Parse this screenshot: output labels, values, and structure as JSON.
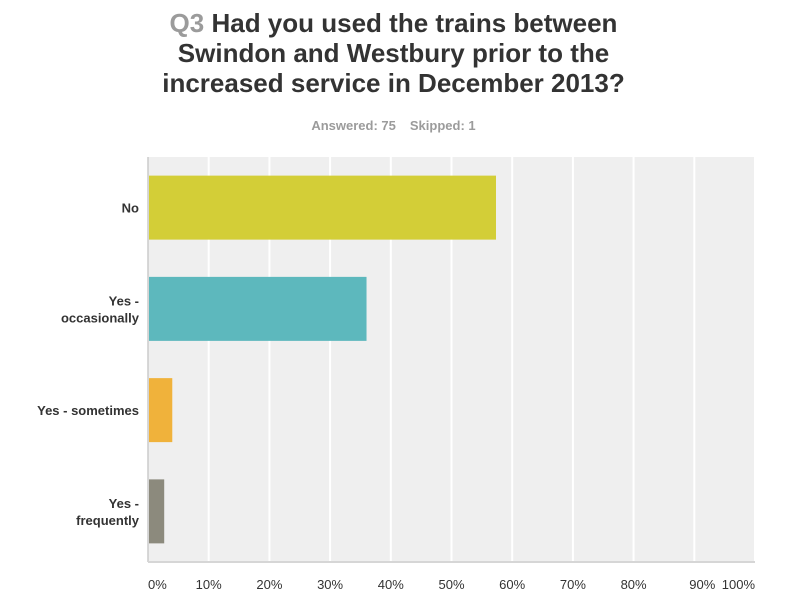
{
  "header": {
    "question_number": "Q3",
    "question_text": "Had you used the trains between Swindon and Westbury prior to the increased service in December 2013?",
    "answered": "Answered: 75",
    "skipped": "Skipped: 1"
  },
  "chart_data": {
    "type": "bar",
    "orientation": "horizontal",
    "title": "Q3 Had you used the trains between Swindon and Westbury prior to the increased service in December 2013?",
    "subtitle": "Answered: 75 Skipped: 1",
    "xlabel": "",
    "ylabel": "",
    "xlim": [
      0,
      100
    ],
    "grid": true,
    "legend": "none",
    "categories": [
      {
        "label": [
          "No"
        ],
        "value": 57.33,
        "color": "#d3ce37"
      },
      {
        "label": [
          "Yes -",
          "occasionally"
        ],
        "value": 36.0,
        "color": "#5db8bd"
      },
      {
        "label": [
          "Yes - sometimes"
        ],
        "value": 4.0,
        "color": "#f0b23b"
      },
      {
        "label": [
          "Yes -",
          "frequently"
        ],
        "value": 2.67,
        "color": "#8c8a7d"
      }
    ],
    "x_ticks": [
      "0%",
      "10%",
      "20%",
      "30%",
      "40%",
      "50%",
      "60%",
      "70%",
      "80%",
      "90%",
      "100%"
    ],
    "tick_values": [
      0,
      10,
      20,
      30,
      40,
      50,
      60,
      70,
      80,
      90,
      100
    ],
    "colors": {
      "plot_bg": "#efefef",
      "grid": "#ffffff",
      "axis": "#cccccc"
    }
  }
}
